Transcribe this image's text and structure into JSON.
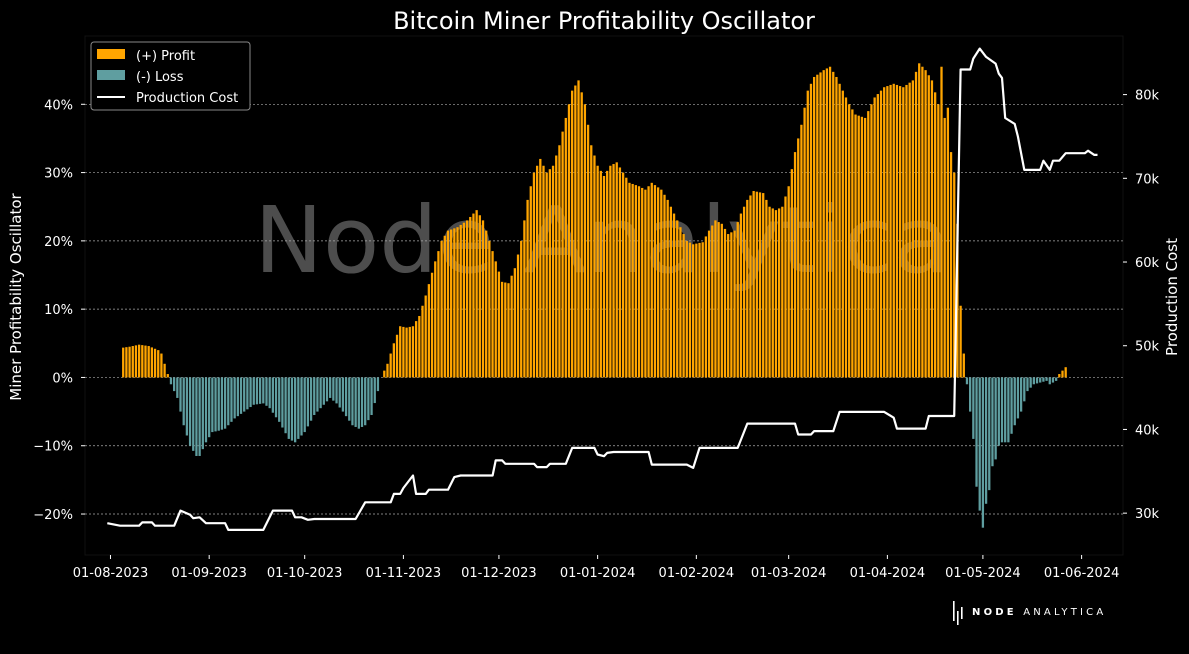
{
  "chart_data": {
    "type": "bar+line",
    "title": "Bitcoin Miner Profitability Oscillator",
    "ylabel_left": "Miner Profitability Oscillator",
    "ylabel_right": "Production Cost",
    "watermark": "Node Analytica",
    "x_ticks": [
      "01-08-2023",
      "01-09-2023",
      "01-10-2023",
      "01-11-2023",
      "01-12-2023",
      "01-01-2024",
      "01-02-2024",
      "01-03-2024",
      "01-04-2024",
      "01-05-2024",
      "01-06-2024"
    ],
    "y_left_ticks": [
      "40%",
      "30%",
      "20%",
      "10%",
      "0%",
      "−10%",
      "−20%"
    ],
    "y_left_tick_values": [
      40,
      30,
      20,
      10,
      0,
      -10,
      -20
    ],
    "y_left_lim": [
      -26,
      50
    ],
    "y_right_ticks": [
      "80k",
      "70k",
      "60k",
      "50k",
      "40k",
      "30k"
    ],
    "y_right_tick_values": [
      80000,
      70000,
      60000,
      50000,
      40000,
      30000
    ],
    "y_right_lim": [
      25000,
      87000
    ],
    "x_range_days": [
      -8,
      318
    ],
    "grid": "horizontal, dotted",
    "legend": {
      "position": "top-left",
      "items": [
        "(+) Profit",
        "(-) Loss",
        "Production Cost"
      ]
    },
    "colors": {
      "profit": "#FFA500",
      "loss": "#5F9EA0",
      "line": "#FFFFFF",
      "background": "#000000"
    },
    "oscillator_keyframes": [
      [
        0,
        null
      ],
      [
        2,
        null
      ],
      [
        3,
        4.3
      ],
      [
        6,
        4.5
      ],
      [
        9,
        4.8
      ],
      [
        12,
        4.6
      ],
      [
        15,
        4.0
      ],
      [
        16,
        3.5
      ],
      [
        17,
        2
      ],
      [
        18,
        0.5
      ],
      [
        19,
        -1
      ],
      [
        21,
        -3
      ],
      [
        23,
        -7
      ],
      [
        25,
        -10
      ],
      [
        27,
        -11.5
      ],
      [
        28,
        -11.5
      ],
      [
        30,
        -9.5
      ],
      [
        32,
        -8
      ],
      [
        34,
        -7.8
      ],
      [
        36,
        -7.5
      ],
      [
        39,
        -6
      ],
      [
        42,
        -5
      ],
      [
        45,
        -4
      ],
      [
        48,
        -3.8
      ],
      [
        50,
        -4.5
      ],
      [
        53,
        -6.5
      ],
      [
        56,
        -9
      ],
      [
        58,
        -9.5
      ],
      [
        61,
        -8
      ],
      [
        64,
        -5.5
      ],
      [
        67,
        -4
      ],
      [
        69,
        -3
      ],
      [
        71,
        -3.8
      ],
      [
        73,
        -5
      ],
      [
        76,
        -7
      ],
      [
        78,
        -7.5
      ],
      [
        80,
        -7
      ],
      [
        82,
        -5.5
      ],
      [
        84,
        -2
      ],
      [
        85,
        0
      ],
      [
        87,
        2
      ],
      [
        89,
        5
      ],
      [
        91,
        7.5
      ],
      [
        93,
        7.3
      ],
      [
        95,
        7.5
      ],
      [
        97,
        9
      ],
      [
        99,
        12
      ],
      [
        102,
        17
      ],
      [
        104,
        20
      ],
      [
        106,
        21.5
      ],
      [
        109,
        22
      ],
      [
        112,
        23
      ],
      [
        115,
        24.5
      ],
      [
        117,
        23
      ],
      [
        119,
        20
      ],
      [
        121,
        17
      ],
      [
        123,
        14
      ],
      [
        125,
        13.8
      ],
      [
        127,
        16
      ],
      [
        129,
        20
      ],
      [
        131,
        26
      ],
      [
        133,
        30
      ],
      [
        135,
        32
      ],
      [
        137,
        30
      ],
      [
        139,
        31
      ],
      [
        141,
        34
      ],
      [
        143,
        38
      ],
      [
        145,
        42
      ],
      [
        147,
        43.5
      ],
      [
        149,
        40
      ],
      [
        151,
        34
      ],
      [
        153,
        31
      ],
      [
        155,
        29.5
      ],
      [
        157,
        31
      ],
      [
        159,
        31.5
      ],
      [
        161,
        30
      ],
      [
        163,
        28.5
      ],
      [
        166,
        28
      ],
      [
        168,
        27.5
      ],
      [
        170,
        28.5
      ],
      [
        173,
        27.5
      ],
      [
        175,
        26
      ],
      [
        177,
        24
      ],
      [
        179,
        22
      ],
      [
        181,
        20
      ],
      [
        183,
        19.5
      ],
      [
        186,
        19.8
      ],
      [
        188,
        21.5
      ],
      [
        190,
        23
      ],
      [
        192,
        22.5
      ],
      [
        194,
        21
      ],
      [
        196,
        21.5
      ],
      [
        198,
        24
      ],
      [
        200,
        26
      ],
      [
        202,
        27.3
      ],
      [
        205,
        27
      ],
      [
        207,
        25
      ],
      [
        209,
        24.5
      ],
      [
        211,
        25
      ],
      [
        213,
        28
      ],
      [
        215,
        33
      ],
      [
        217,
        37
      ],
      [
        219,
        42
      ],
      [
        221,
        44
      ],
      [
        224,
        45
      ],
      [
        226,
        45.5
      ],
      [
        228,
        44
      ],
      [
        230,
        42
      ],
      [
        232,
        40
      ],
      [
        234,
        38.5
      ],
      [
        237,
        38
      ],
      [
        240,
        41
      ],
      [
        243,
        42.5
      ],
      [
        246,
        43
      ],
      [
        249,
        42.5
      ],
      [
        252,
        43.5
      ],
      [
        254,
        46
      ],
      [
        256,
        45
      ],
      [
        258,
        43.5
      ],
      [
        260,
        40
      ],
      [
        261,
        45.5
      ],
      [
        262,
        38
      ],
      [
        263,
        39.5
      ],
      [
        264,
        33
      ],
      [
        265,
        30
      ],
      [
        266,
        22.5
      ],
      [
        267,
        10.5
      ],
      [
        268,
        3.5
      ],
      [
        269,
        -1
      ],
      [
        270,
        -5
      ],
      [
        271,
        -9
      ],
      [
        272,
        -16
      ],
      [
        273,
        -19.5
      ],
      [
        274,
        -22
      ],
      [
        275,
        -18.5
      ],
      [
        276,
        -16.5
      ],
      [
        277,
        -13
      ],
      [
        278,
        -12
      ],
      [
        279,
        -10
      ],
      [
        280,
        -9.5
      ],
      [
        282,
        -9.5
      ],
      [
        284,
        -7
      ],
      [
        286,
        -5
      ],
      [
        288,
        -2
      ],
      [
        290,
        -1
      ],
      [
        294,
        -0.5
      ],
      [
        295,
        -1
      ],
      [
        297,
        -0.5
      ],
      [
        298,
        0.5
      ],
      [
        300,
        1.5
      ],
      [
        301,
        null
      ]
    ],
    "production_cost_keyframes": [
      [
        -1,
        28800
      ],
      [
        3,
        28500
      ],
      [
        9,
        28500
      ],
      [
        10,
        28900
      ],
      [
        13,
        28900
      ],
      [
        14,
        28500
      ],
      [
        20,
        28500
      ],
      [
        22,
        30300
      ],
      [
        25,
        29800
      ],
      [
        26,
        29400
      ],
      [
        28,
        29500
      ],
      [
        30,
        28800
      ],
      [
        36,
        28800
      ],
      [
        37,
        28000
      ],
      [
        48,
        28000
      ],
      [
        51,
        30300
      ],
      [
        57,
        30300
      ],
      [
        58,
        29500
      ],
      [
        60,
        29500
      ],
      [
        62,
        29200
      ],
      [
        64,
        29300
      ],
      [
        77,
        29300
      ],
      [
        80,
        31300
      ],
      [
        88,
        31300
      ],
      [
        89,
        32300
      ],
      [
        91,
        32300
      ],
      [
        92,
        33000
      ],
      [
        95,
        34500
      ],
      [
        96,
        32300
      ],
      [
        99,
        32300
      ],
      [
        100,
        32800
      ],
      [
        106,
        32800
      ],
      [
        108,
        34300
      ],
      [
        110,
        34500
      ],
      [
        120,
        34500
      ],
      [
        121,
        36300
      ],
      [
        123,
        36300
      ],
      [
        124,
        35900
      ],
      [
        133,
        35900
      ],
      [
        134,
        35500
      ],
      [
        137,
        35500
      ],
      [
        138,
        35900
      ],
      [
        143,
        35900
      ],
      [
        145,
        37800
      ],
      [
        152,
        37800
      ],
      [
        153,
        37000
      ],
      [
        155,
        36800
      ],
      [
        156,
        37200
      ],
      [
        158,
        37300
      ],
      [
        169,
        37300
      ],
      [
        170,
        35800
      ],
      [
        181,
        35800
      ],
      [
        183,
        35400
      ],
      [
        185,
        37800
      ],
      [
        197,
        37800
      ],
      [
        200,
        40700
      ],
      [
        215,
        40700
      ],
      [
        216,
        39400
      ],
      [
        220,
        39400
      ],
      [
        221,
        39800
      ],
      [
        227,
        39800
      ],
      [
        229,
        42100
      ],
      [
        243,
        42100
      ],
      [
        246,
        41400
      ],
      [
        247,
        40100
      ],
      [
        256,
        40100
      ],
      [
        257,
        41600
      ],
      [
        265,
        41600
      ],
      [
        267,
        83000
      ],
      [
        270,
        83000
      ],
      [
        271,
        84300
      ],
      [
        273,
        85500
      ],
      [
        275,
        84500
      ],
      [
        278,
        83700
      ],
      [
        279,
        82500
      ],
      [
        280,
        82000
      ],
      [
        281,
        77200
      ],
      [
        284,
        76500
      ],
      [
        285,
        75000
      ],
      [
        287,
        71000
      ],
      [
        292,
        71000
      ],
      [
        293,
        72100
      ],
      [
        295,
        71000
      ],
      [
        296,
        72100
      ],
      [
        298,
        72100
      ],
      [
        300,
        73000
      ],
      [
        306,
        73000
      ],
      [
        307,
        73300
      ],
      [
        309,
        72800
      ],
      [
        310,
        72800
      ]
    ]
  }
}
